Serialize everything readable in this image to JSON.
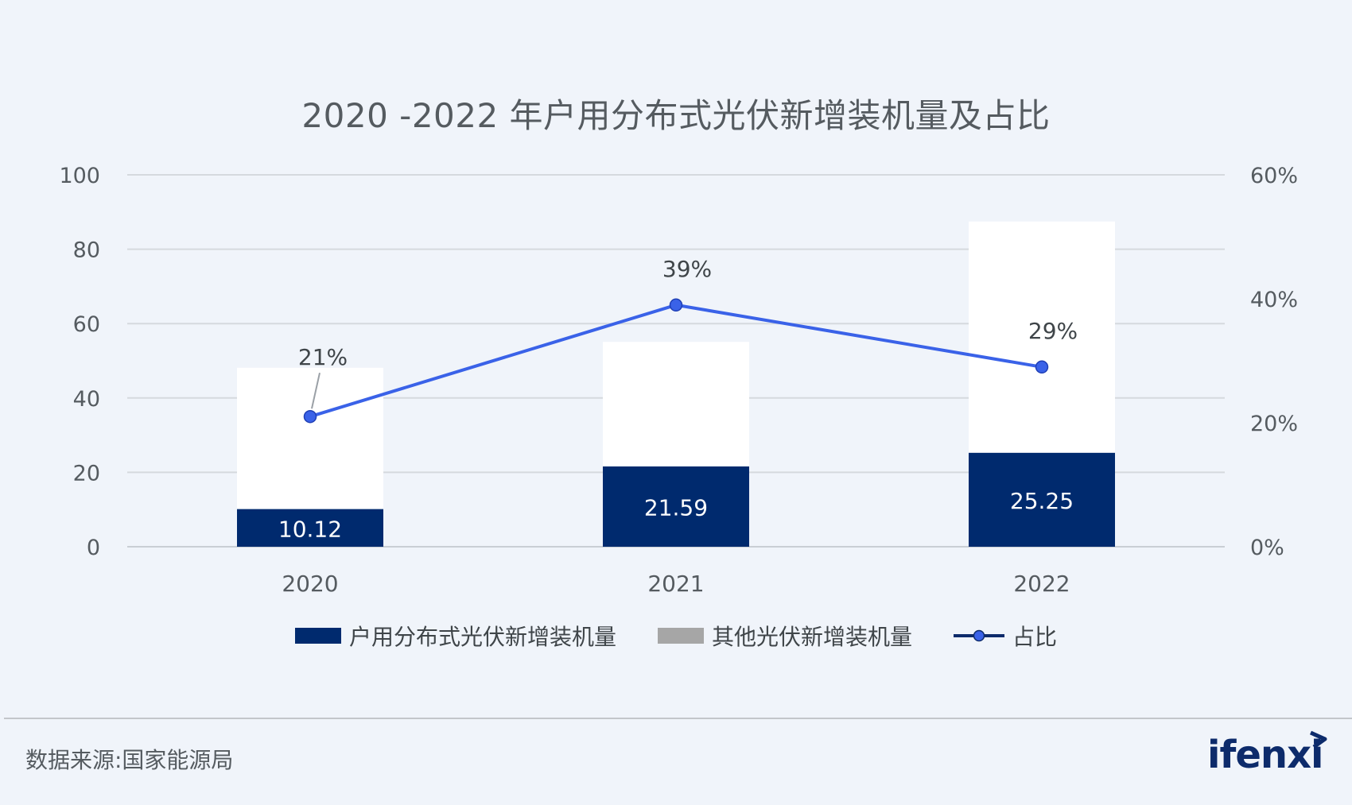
{
  "title": "2020 -2022 年户用分布式光伏新增装机量及占比",
  "chart_data": {
    "type": "bar",
    "categories": [
      "2020",
      "2021",
      "2022"
    ],
    "series": [
      {
        "name": "户用分布式光伏新增装机量",
        "values": [
          10.12,
          21.59,
          25.25
        ],
        "color": "#002a6e",
        "axis": "left",
        "stack": "total"
      },
      {
        "name": "其他光伏新增装机量",
        "values": [
          38,
          33.5,
          62.2
        ],
        "color": "#a6a6a6",
        "axis": "left",
        "stack": "total"
      },
      {
        "name": "占比",
        "type": "line",
        "values": [
          21,
          39,
          29
        ],
        "unit": "%",
        "color": "#3a62e8",
        "axis": "right"
      }
    ],
    "data_labels": {
      "bars": [
        "10.12",
        "21.59",
        "25.25"
      ],
      "line": [
        "21%",
        "39%",
        "29%"
      ]
    },
    "y_left": {
      "ylim": [
        0,
        100
      ],
      "ticks": [
        "0",
        "20",
        "40",
        "60",
        "80",
        "100"
      ]
    },
    "y_right": {
      "ylim": [
        0,
        60
      ],
      "ticks": [
        "0%",
        "20%",
        "40%",
        "60%"
      ]
    },
    "grid": true,
    "legend_position": "bottom"
  },
  "legend": [
    {
      "label": "户用分布式光伏新增装机量",
      "color": "#002a6e"
    },
    {
      "label": "其他光伏新增装机量",
      "color": "#a6a6a6"
    },
    {
      "label": "占比",
      "color": "#3a62e8"
    }
  ],
  "source": "数据来源:国家能源局",
  "logo": "ifenxi"
}
